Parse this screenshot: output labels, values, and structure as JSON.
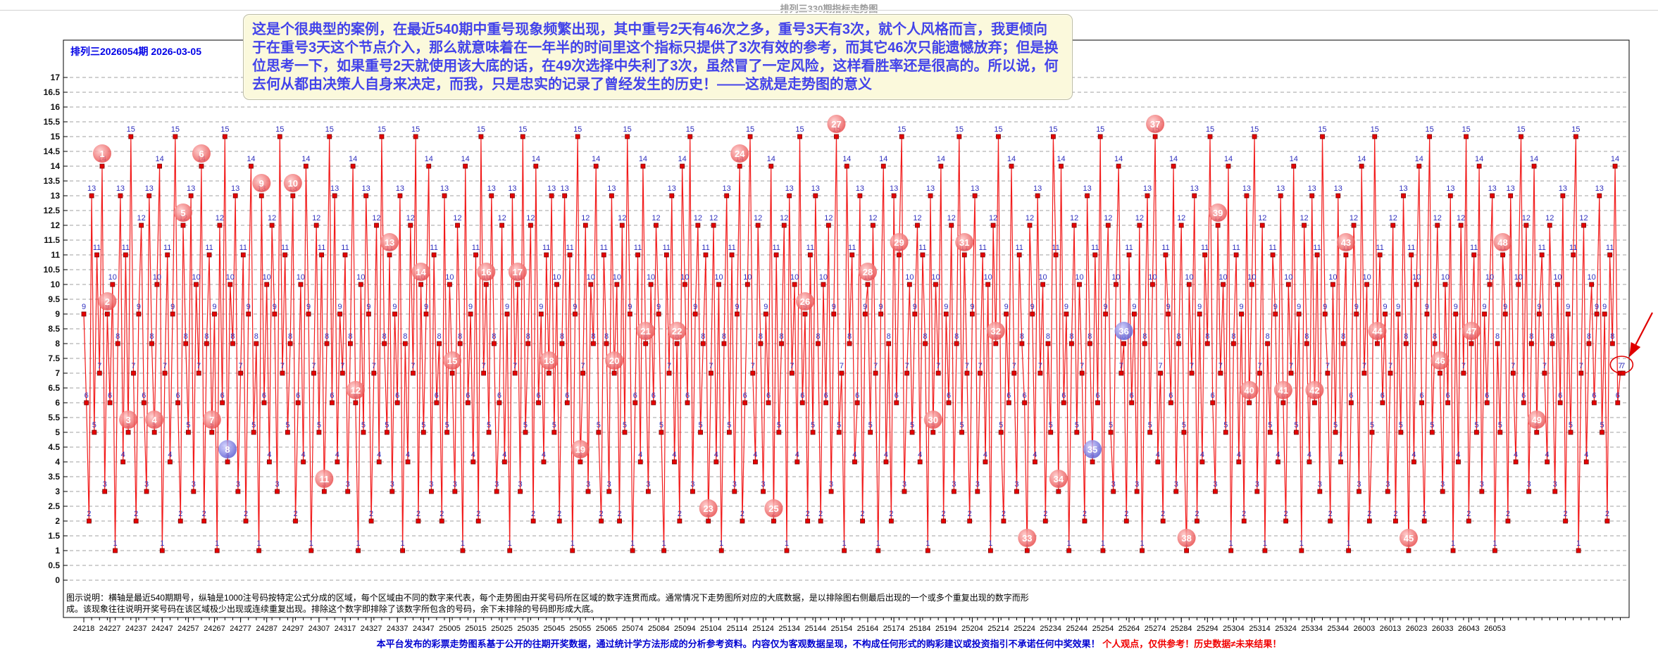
{
  "page_title": "排列三330期指标走势图",
  "chart_header": {
    "issue_label": "排列三2026054期 2026-03-05"
  },
  "annotation_box": {
    "lines": [
      "这是个很典型的案例，在最近540期中重号现象频繁出现，其中重号2天有46次之多，重号3天有3次，就个人风格而言，我更倾向",
      "于在重号3天这个节点介入，那么就意味着在一年半的时间里这个指标只提供了3次有效的参考，而其它46次只能遗憾放弃；但是换",
      "位思考一下，如果重号2天就使用该大底的话，在49次选择中失利了3次，虽然冒了一定风险，这样看胜率还是很高的。所以说，何",
      "去何从都由决策人自身来决定，而我，只是忠实的记录了曾经发生的历史！——这就是走势图的意义"
    ]
  },
  "footnote": {
    "line1": "图示说明：横轴是最近540期期号，纵轴是1000注号码按特定公式分成的区域，每个区域由不同的数字来代表，每个走势图由开奖号码所在区域的数字连贯而成。通常情况下走势图所对应的大底数据，是以排除图右侧最后出现的一个或多个重复出现的数字而形",
    "line2": "成。该现象往往说明开奖号码在该区域极少出现或连续重复出现。排除这个数字即排除了该数字所包含的号码，余下未排除的号码即形成大底。"
  },
  "footer": {
    "disclaimer_blue": "本平台发布的彩票走势图系基于公开的往期开奖数据，通过统计学方法形成的分析参考资料。内容仅为客观数据呈现，不构成任何形式的购彩建议或投资指引不承诺任何中奖效果！",
    "disclaimer_red": "个人观点，仅供参考！历史数据≠未来结果！"
  },
  "colors": {
    "series_line": "#f21a1a",
    "marker_fill": "#e60000",
    "marker_border": "#7a0000",
    "value_label": "#2f2fbe",
    "grid": "#a0a0a0",
    "badge_red": "#e84848",
    "badge_blue": "#6060d8",
    "annotation_text": "#4343ea",
    "annotation_bg": "#fbf9dc",
    "highlight": "#e00000"
  },
  "chart_data": {
    "type": "line",
    "title": "排列三330期指标走势图",
    "xlabel": "最近540期期号",
    "ylabel": "区域指标值",
    "ylim": [
      0,
      17
    ],
    "y_tick_step": 0.5,
    "grid": "horizontal-dashed",
    "legend_position": "none",
    "x_tick_labels": [
      "24218",
      "24227",
      "24237",
      "24247",
      "24257",
      "24267",
      "24277",
      "24287",
      "24297",
      "24307",
      "24317",
      "24327",
      "24337",
      "24347",
      "25005",
      "25015",
      "25025",
      "25035",
      "25045",
      "25055",
      "25065",
      "25074",
      "25084",
      "25094",
      "25104",
      "25114",
      "25124",
      "25134",
      "25144",
      "25154",
      "25164",
      "25174",
      "25184",
      "25194",
      "25204",
      "25214",
      "25224",
      "25234",
      "25244",
      "25254",
      "25264",
      "25274",
      "25284",
      "25294",
      "25304",
      "25314",
      "25324",
      "25334",
      "25344",
      "26003",
      "26013",
      "26023",
      "26033",
      "26043",
      "26053"
    ],
    "values": [
      9,
      6,
      2,
      13,
      5,
      11,
      7,
      14,
      3,
      9,
      6,
      10,
      1,
      8,
      13,
      4,
      11,
      5,
      15,
      7,
      2,
      9,
      12,
      6,
      3,
      13,
      8,
      5,
      10,
      14,
      1,
      7,
      11,
      4,
      9,
      15,
      6,
      2,
      12,
      8,
      5,
      13,
      3,
      10,
      7,
      14,
      2,
      8,
      11,
      5,
      9,
      1,
      12,
      6,
      15,
      4,
      10,
      8,
      13,
      3,
      7,
      11,
      2,
      9,
      14,
      5,
      8,
      1,
      13,
      6,
      10,
      4,
      12,
      9,
      3,
      15,
      7,
      11,
      5,
      8,
      13,
      2,
      6,
      10,
      4,
      14,
      9,
      1,
      7,
      12,
      5,
      11,
      3,
      8,
      15,
      6,
      13,
      4,
      9,
      7,
      11,
      3,
      8,
      14,
      6,
      1,
      10,
      5,
      13,
      9,
      2,
      7,
      12,
      4,
      15,
      8,
      5,
      11,
      3,
      9,
      6,
      13,
      1,
      8,
      4,
      12,
      7,
      15,
      2,
      10,
      5,
      9,
      14,
      3,
      11,
      6,
      8,
      2,
      13,
      5,
      10,
      7,
      3,
      12,
      8,
      1,
      14,
      6,
      9,
      4,
      11,
      2,
      15,
      7,
      10,
      5,
      13,
      8,
      3,
      6,
      12,
      4,
      9,
      1,
      13,
      7,
      10,
      3,
      15,
      5,
      8,
      12,
      2,
      14,
      6,
      9,
      4,
      11,
      7,
      13,
      5,
      10,
      2,
      8,
      13,
      6,
      11,
      1,
      9,
      15,
      4,
      7,
      12,
      3,
      10,
      8,
      14,
      5,
      2,
      11,
      8,
      3,
      13,
      7,
      10,
      2,
      12,
      5,
      15,
      9,
      1,
      6,
      11,
      4,
      14,
      8,
      3,
      10,
      6,
      12,
      9,
      5,
      1,
      11,
      7,
      13,
      4,
      8,
      2,
      14,
      10,
      6,
      15,
      3,
      9,
      12,
      5,
      8,
      11,
      2,
      7,
      12,
      4,
      10,
      1,
      8,
      13,
      5,
      11,
      3,
      9,
      14,
      2,
      6,
      10,
      15,
      7,
      4,
      12,
      8,
      3,
      9,
      6,
      14,
      2,
      11,
      5,
      8,
      12,
      1,
      13,
      7,
      10,
      4,
      15,
      6,
      9,
      2,
      11,
      5,
      13,
      8,
      2,
      10,
      6,
      12,
      3,
      9,
      15,
      5,
      7,
      1,
      14,
      8,
      11,
      4,
      6,
      13,
      2,
      9,
      10,
      5,
      12,
      7,
      1,
      9,
      14,
      4,
      8,
      2,
      13,
      6,
      11,
      15,
      3,
      7,
      10,
      5,
      9,
      12,
      4,
      11,
      8,
      1,
      13,
      5,
      10,
      7,
      14,
      2,
      9,
      6,
      12,
      3,
      8,
      15,
      5,
      11,
      7,
      2,
      9,
      13,
      3,
      7,
      11,
      4,
      10,
      1,
      12,
      8,
      15,
      5,
      2,
      9,
      6,
      14,
      7,
      3,
      11,
      8,
      6,
      1,
      12,
      9,
      4,
      13,
      7,
      10,
      2,
      8,
      5,
      15,
      11,
      3,
      14,
      6,
      9,
      1,
      8,
      12,
      5,
      10,
      7,
      2,
      13,
      8,
      4,
      11,
      6,
      15,
      1,
      9,
      12,
      5,
      3,
      10,
      14,
      7,
      8,
      2,
      11,
      6,
      9,
      3,
      12,
      1,
      8,
      13,
      5,
      10,
      15,
      4,
      7,
      2,
      11,
      9,
      6,
      14,
      3,
      8,
      12,
      5,
      1,
      10,
      7,
      13,
      2,
      9,
      4,
      11,
      8,
      15,
      6,
      3,
      12,
      7,
      10,
      5,
      14,
      1,
      8,
      11,
      4,
      9,
      2,
      13,
      6,
      10,
      15,
      3,
      7,
      12,
      1,
      8,
      5,
      11,
      9,
      4,
      13,
      6,
      2,
      10,
      7,
      14,
      5,
      9,
      1,
      12,
      8,
      4,
      13,
      6,
      11,
      3,
      15,
      9,
      7,
      2,
      10,
      5,
      13,
      4,
      8,
      11,
      1,
      6,
      12,
      9,
      3,
      14,
      7,
      10,
      2,
      5,
      15,
      8,
      11,
      6,
      9,
      3,
      7,
      12,
      2,
      9,
      5,
      13,
      8,
      1,
      11,
      4,
      10,
      14,
      6,
      2,
      9,
      15,
      5,
      8,
      12,
      7,
      3,
      10,
      6,
      13,
      1,
      9,
      4,
      12,
      7,
      15,
      2,
      8,
      11,
      5,
      14,
      3,
      9,
      6,
      10,
      13,
      1,
      8,
      5,
      11,
      9,
      2,
      13,
      7,
      4,
      10,
      15,
      6,
      12,
      3,
      8,
      14,
      5,
      9,
      11,
      7,
      4,
      12,
      8,
      3,
      10,
      6,
      13,
      2,
      9,
      5,
      11,
      15,
      1,
      7,
      12,
      4,
      8,
      10,
      6,
      9,
      13,
      5,
      9,
      2,
      11,
      8,
      14,
      6,
      7,
      7
    ],
    "repeat_badges_total": 49,
    "repeat_2day_count": 46,
    "repeat_3day_count": 3,
    "blue_badge_numbers": [
      8,
      35,
      36
    ],
    "badges": [
      [
        1,
        7,
        "r"
      ],
      [
        2,
        9,
        "r"
      ],
      [
        3,
        17,
        "r"
      ],
      [
        4,
        27,
        "r"
      ],
      [
        5,
        38,
        "r"
      ],
      [
        6,
        45,
        "r"
      ],
      [
        7,
        49,
        "r"
      ],
      [
        8,
        55,
        "b"
      ],
      [
        9,
        68,
        "r"
      ],
      [
        10,
        80,
        "r"
      ],
      [
        11,
        92,
        "r"
      ],
      [
        12,
        104,
        "r"
      ],
      [
        13,
        117,
        "r"
      ],
      [
        14,
        129,
        "r"
      ],
      [
        15,
        141,
        "r"
      ],
      [
        16,
        154,
        "r"
      ],
      [
        17,
        166,
        "r"
      ],
      [
        18,
        178,
        "r"
      ],
      [
        19,
        190,
        "r"
      ],
      [
        20,
        203,
        "r"
      ],
      [
        21,
        215,
        "r"
      ],
      [
        22,
        227,
        "r"
      ],
      [
        23,
        239,
        "r"
      ],
      [
        24,
        251,
        "r"
      ],
      [
        25,
        264,
        "r"
      ],
      [
        26,
        276,
        "r"
      ],
      [
        27,
        288,
        "r"
      ],
      [
        28,
        300,
        "r"
      ],
      [
        29,
        312,
        "r"
      ],
      [
        30,
        325,
        "r"
      ],
      [
        31,
        337,
        "r"
      ],
      [
        32,
        349,
        "r"
      ],
      [
        33,
        361,
        "r"
      ],
      [
        34,
        373,
        "r"
      ],
      [
        35,
        386,
        "b"
      ],
      [
        36,
        398,
        "b"
      ],
      [
        37,
        410,
        "r"
      ],
      [
        38,
        422,
        "r"
      ],
      [
        39,
        434,
        "r"
      ],
      [
        40,
        446,
        "r"
      ],
      [
        41,
        459,
        "r"
      ],
      [
        42,
        471,
        "r"
      ],
      [
        43,
        483,
        "r"
      ],
      [
        44,
        495,
        "r"
      ],
      [
        45,
        507,
        "r"
      ],
      [
        46,
        519,
        "r"
      ],
      [
        47,
        531,
        "r"
      ],
      [
        48,
        543,
        "r"
      ],
      [
        49,
        556,
        "r"
      ]
    ],
    "end_annotation": {
      "circled_value_labels": "7 7"
    }
  }
}
